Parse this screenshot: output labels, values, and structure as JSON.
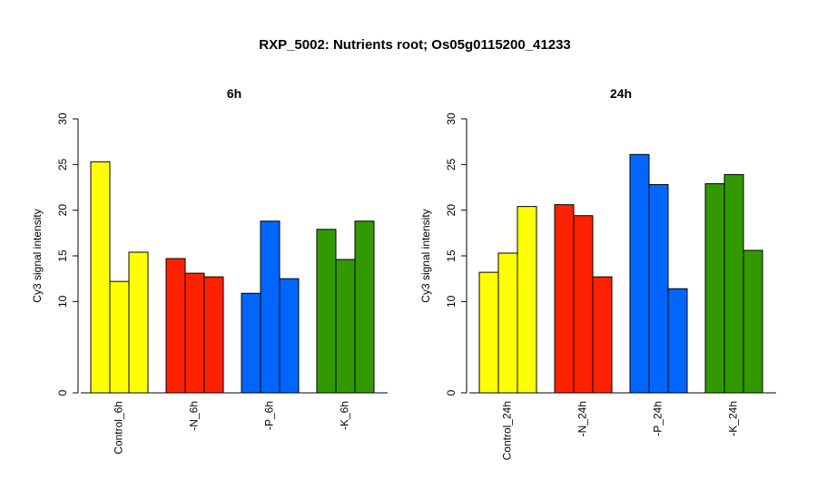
{
  "title": "RXP_5002: Nutrients root; Os05g0115200_41233",
  "chart_data": [
    {
      "type": "bar",
      "title": "6h",
      "ylabel": "Cy3 signal intensity",
      "yticks": [
        "0",
        "10",
        "15",
        "20",
        "25",
        "30"
      ],
      "ylim": [
        0,
        30
      ],
      "groups": [
        {
          "label": "Control_6h",
          "color": "#ffff00",
          "values": [
            25.3,
            12.2,
            15.4
          ]
        },
        {
          "label": "-N_6h",
          "color": "#ff2200",
          "values": [
            14.7,
            13.1,
            12.7
          ]
        },
        {
          "label": "-P_6h",
          "color": "#0066ff",
          "values": [
            10.9,
            18.8,
            12.5
          ]
        },
        {
          "label": "-K_6h",
          "color": "#339900",
          "values": [
            17.9,
            14.6,
            18.8
          ]
        }
      ]
    },
    {
      "type": "bar",
      "title": "24h",
      "ylabel": "Cy3 signal intensity",
      "yticks": [
        "0",
        "10",
        "15",
        "20",
        "25",
        "30"
      ],
      "ylim": [
        0,
        30
      ],
      "groups": [
        {
          "label": "Control_24h",
          "color": "#ffff00",
          "values": [
            13.2,
            15.3,
            20.4
          ]
        },
        {
          "label": "-N_24h",
          "color": "#ff2200",
          "values": [
            20.6,
            19.4,
            12.7
          ]
        },
        {
          "label": "-P_24h",
          "color": "#0066ff",
          "values": [
            26.1,
            22.8,
            11.4
          ]
        },
        {
          "label": "-K_24h",
          "color": "#339900",
          "values": [
            22.9,
            23.9,
            15.6
          ]
        }
      ]
    }
  ]
}
